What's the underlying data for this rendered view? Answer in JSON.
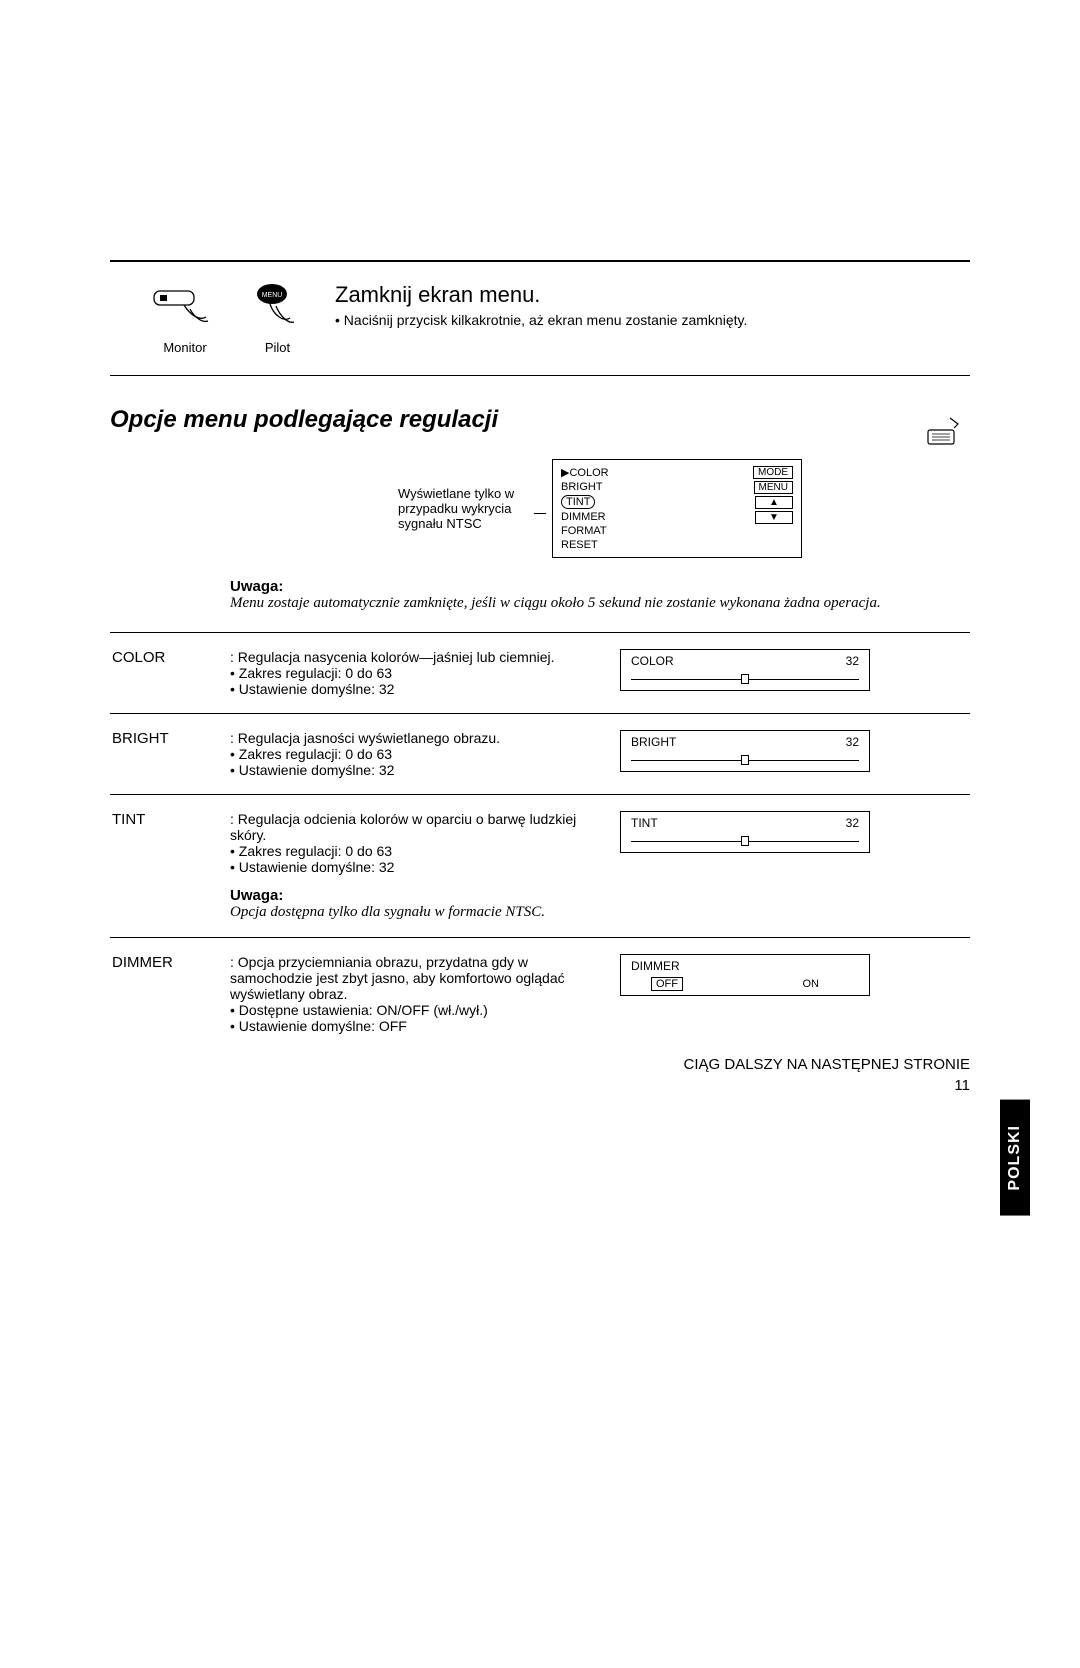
{
  "corner_icon": "remote-icon",
  "remotes": {
    "monitor_label": "Monitor",
    "pilot_label": "Pilot"
  },
  "close_menu": {
    "title": "Zamknij ekran menu.",
    "line": "• Naciśnij przycisk kilkakrotnie, aż ekran menu zostanie zamknięty."
  },
  "section_title": "Opcje menu podlegające regulacji",
  "ntsc_note": "Wyświetlane tylko w przypadku wykrycia sygnału NTSC",
  "menu_items": {
    "col": [
      " ▶COLOR",
      "  BRIGHT",
      "  TINT",
      "  DIMMER",
      "  FORMAT",
      "  RESET"
    ],
    "right": [
      "MODE",
      "MENU",
      "▲",
      "▼"
    ]
  },
  "uwaga": {
    "label": "Uwaga:",
    "text": "Menu zostaje automatycznie zamknięte, jeśli w ciągu około 5 sekund nie zostanie wykonana żadna operacja."
  },
  "options": [
    {
      "name": "COLOR",
      "desc": ": Regulacja nasycenia kolorów—jaśniej lub ciemniej.",
      "bullets": [
        "• Zakres regulacji: 0 do 63",
        "• Ustawienie domyślne: 32"
      ],
      "vis": {
        "label": "COLOR",
        "value": "32",
        "thumb_pos": 0.5,
        "type": "slider"
      }
    },
    {
      "name": "BRIGHT",
      "desc": ": Regulacja jasności wyświetlanego obrazu.",
      "bullets": [
        "• Zakres regulacji: 0 do 63",
        "• Ustawienie domyślne: 32"
      ],
      "vis": {
        "label": "BRIGHT",
        "value": "32",
        "thumb_pos": 0.5,
        "type": "slider"
      }
    },
    {
      "name": "TINT",
      "desc": ": Regulacja odcienia kolorów w oparciu o barwę ludzkiej skóry.",
      "bullets": [
        "• Zakres regulacji: 0 do 63",
        "• Ustawienie domyślne: 32"
      ],
      "vis": {
        "label": "TINT",
        "value": "32",
        "thumb_pos": 0.5,
        "type": "slider"
      },
      "sub_note_label": "Uwaga:",
      "sub_note_text": "Opcja dostępna tylko dla sygnału w formacie NTSC."
    },
    {
      "name": "DIMMER",
      "desc": ": Opcja przyciemniania obrazu, przydatna gdy w samochodzie jest zbyt jasno, aby komfortowo oglądać wyświetlany obraz.",
      "bullets": [
        "• Dostępne ustawienia: ON/OFF (wł./wył.)",
        "• Ustawienie domyślne: OFF"
      ],
      "vis": {
        "label": "DIMMER",
        "off": "OFF",
        "on": "ON",
        "type": "toggle"
      }
    }
  ],
  "footer": "CIĄG DALSZY NA NASTĘPNEJ STRONIE",
  "page_number": "11",
  "lang_tab": "POLSKI",
  "colors": {
    "text": "#000000",
    "bg": "#ffffff"
  }
}
